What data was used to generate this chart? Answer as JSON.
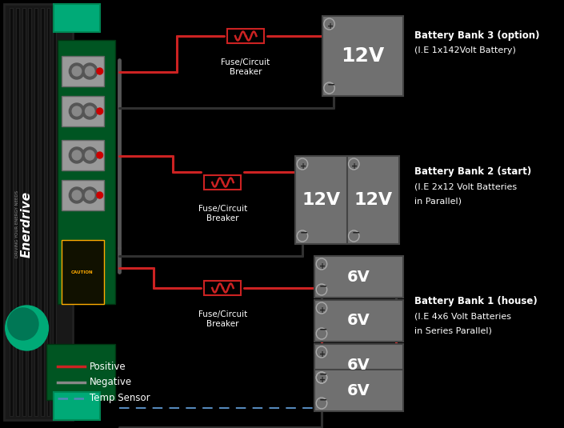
{
  "bg_color": "#000000",
  "positive_color": "#cc2222",
  "negative_color": "#303030",
  "temp_color": "#5588bb",
  "label_color": "#ffffff",
  "battery_fill": "#707070",
  "battery_edge": "#444444",
  "pcb_color": "#006633",
  "ctrl_color": "#111111",
  "bank3_label1": "Battery Bank 3 (option)",
  "bank3_label2": "(I.E 1x142Volt Battery)",
  "bank2_label1": "Battery Bank 2 (start)",
  "bank2_label2": "(I.E 2x12 Volt Batteries",
  "bank2_label3": "in Parallel)",
  "bank1_label1": "Battery Bank 1 (house)",
  "bank1_label2": "(I.E 4x6 Volt Batteries",
  "bank1_label3": "in Series Parallel)",
  "fuse_label": "Fuse/Circuit\nBreaker",
  "legend_pos": "Positive",
  "legend_neg": "Negative",
  "legend_temp": "Temp Sensor",
  "figw": 7.05,
  "figh": 5.35,
  "dpi": 100
}
